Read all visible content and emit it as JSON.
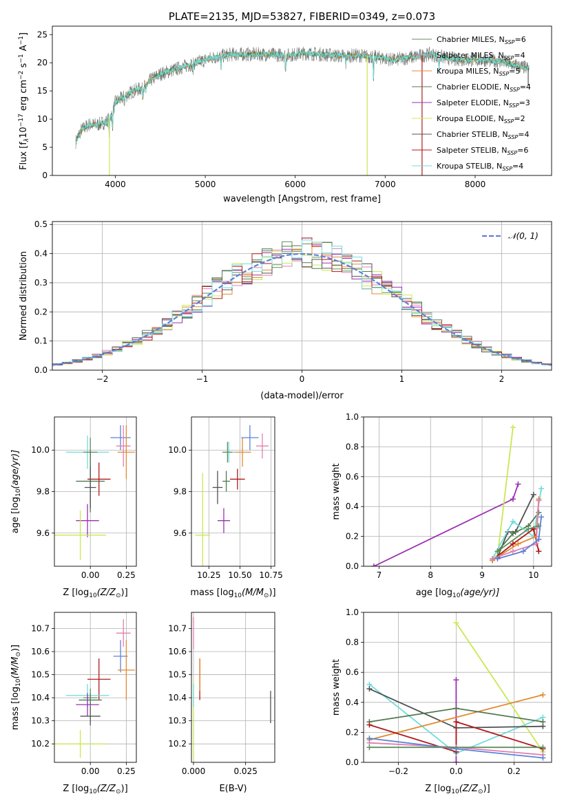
{
  "colors": {
    "Chabrier MILES": "#5f8f5f",
    "Salpeter MILES": "#e07fb0",
    "Kroupa MILES": "#e08a30",
    "Chabrier ELODIE": "#507850",
    "Salpeter ELODIE": "#9a30b0",
    "Kroupa ELODIE": "#c8e850",
    "Chabrier STELIB": "#505050",
    "Salpeter STELIB": "#b01818",
    "Kroupa STELIB": "#70dada",
    "Blue": "#5b82d6",
    "grid": "#b0b0b0"
  },
  "chart_data": [
    {
      "id": "spectrum",
      "type": "line",
      "title": "PLATE=2135, MJD=53827, FIBERID=0349, z=0.073",
      "xlabel": "wavelength [Angstrom, rest frame]",
      "ylabel_main": "Flux [f",
      "ylabel_sub": "λ",
      "ylabel_mid": "10",
      "ylabel_exp": "−17",
      "ylabel_rest": " erg cm",
      "ylabel_exp2": "−2",
      "ylabel_rest2": " s",
      "ylabel_exp3": "−1",
      "ylabel_rest3": " A",
      "ylabel_exp4": "−1",
      "ylabel_end": "]",
      "xlim": [
        3300,
        8850
      ],
      "ylim": [
        0,
        26.5
      ],
      "xticks": [
        4000,
        5000,
        6000,
        7000,
        8000
      ],
      "yticks": [
        0,
        5,
        10,
        15,
        20,
        25
      ],
      "continuum": [
        [
          3560,
          6
        ],
        [
          3620,
          8
        ],
        [
          3700,
          9
        ],
        [
          3800,
          9
        ],
        [
          3900,
          9.5
        ],
        [
          3970,
          11
        ],
        [
          4000,
          13
        ],
        [
          4100,
          14
        ],
        [
          4200,
          15
        ],
        [
          4300,
          15.5
        ],
        [
          4400,
          17
        ],
        [
          4500,
          18
        ],
        [
          4700,
          19
        ],
        [
          4900,
          20
        ],
        [
          5100,
          21
        ],
        [
          5300,
          21.5
        ],
        [
          5500,
          21.5
        ],
        [
          5700,
          21.5
        ],
        [
          5900,
          21.3
        ],
        [
          6100,
          21.7
        ],
        [
          6300,
          21.5
        ],
        [
          6500,
          21.2
        ],
        [
          6700,
          21.3
        ],
        [
          6900,
          21
        ],
        [
          7100,
          20.5
        ],
        [
          7300,
          21
        ],
        [
          7500,
          21.5
        ],
        [
          7700,
          20.8
        ],
        [
          7900,
          20.5
        ],
        [
          8100,
          20.5
        ],
        [
          8300,
          20.2
        ],
        [
          8450,
          19.5
        ],
        [
          8600,
          19
        ]
      ],
      "legend": [
        {
          "imf": "Chabrier MILES",
          "n": "6"
        },
        {
          "imf": "Salpeter MILES",
          "n": "4"
        },
        {
          "imf": "Kroupa MILES",
          "n": "5"
        },
        {
          "imf": "Chabrier ELODIE",
          "n": "4"
        },
        {
          "imf": "Salpeter ELODIE",
          "n": "3"
        },
        {
          "imf": "Kroupa ELODIE",
          "n": "2"
        },
        {
          "imf": "Chabrier STELIB",
          "n": "4"
        },
        {
          "imf": "Salpeter STELIB",
          "n": "6"
        },
        {
          "imf": "Kroupa STELIB",
          "n": "4"
        }
      ],
      "legend_prefix": "N",
      "legend_sub": "SSP",
      "legend_placement": "top-right"
    },
    {
      "id": "residuals",
      "type": "histogram",
      "xlabel": "(data-model)/error",
      "ylabel": "Normed distribution",
      "xlim": [
        -2.5,
        2.5
      ],
      "ylim": [
        0,
        0.51
      ],
      "xticks": [
        -2,
        -1,
        0,
        1,
        2
      ],
      "xtick_labels": [
        "−2",
        "−1",
        "0",
        "1",
        "2"
      ],
      "yticks": [
        0.0,
        0.1,
        0.2,
        0.3,
        0.4,
        0.5
      ],
      "ytick_labels": [
        "0.0",
        "0.1",
        "0.2",
        "0.3",
        "0.4",
        "0.5"
      ],
      "bin_width": 0.1,
      "legend_label": "𝒩(0, 1)",
      "legend_placement": "top-right"
    },
    {
      "id": "age_vs_Z",
      "type": "scatter",
      "xlabel": "Z [log",
      "xlabel_sub": "10",
      "xlabel_rest": "(Z/Z",
      "xlabel_sub2": "⊙",
      "xlabel_end": ")]",
      "ylabel": "age  [log",
      "ylabel_sub": "10",
      "ylabel_rest": "(age/yr)]",
      "xlim": [
        -0.25,
        0.32
      ],
      "ylim": [
        9.44,
        10.16
      ],
      "xticks": [
        0.0,
        0.25
      ],
      "xtick_labels": [
        "0.00",
        "0.25"
      ],
      "yticks": [
        9.6,
        9.8,
        10.0
      ],
      "yticks_labels": [
        "9.6",
        "9.8",
        "10.0"
      ],
      "points": [
        {
          "series": "Blue",
          "x": 0.21,
          "y": 10.06,
          "xerr": 0.07,
          "yerr": 0.06
        },
        {
          "series": "Salpeter MILES",
          "x": 0.23,
          "y": 10.02,
          "xerr": 0.05,
          "yerr": 0.1
        },
        {
          "series": "Kroupa MILES",
          "x": 0.25,
          "y": 9.99,
          "xerr": 0.06,
          "yerr": 0.13
        },
        {
          "series": "Kroupa STELIB",
          "x": -0.02,
          "y": 9.99,
          "xerr": 0.15,
          "yerr": 0.08
        },
        {
          "series": "Chabrier MILES",
          "x": 0.0,
          "y": 9.99,
          "xerr": 0.05,
          "yerr": 0.07
        },
        {
          "series": "Salpeter STELIB",
          "x": 0.06,
          "y": 9.86,
          "xerr": 0.08,
          "yerr": 0.08
        },
        {
          "series": "Chabrier ELODIE",
          "x": 0.0,
          "y": 9.85,
          "xerr": 0.1,
          "yerr": 0.15
        },
        {
          "series": "Chabrier STELIB",
          "x": 0.0,
          "y": 9.82,
          "xerr": 0.04,
          "yerr": 0.1
        },
        {
          "series": "Salpeter ELODIE",
          "x": -0.02,
          "y": 9.66,
          "xerr": 0.08,
          "yerr": 0.08
        },
        {
          "series": "Kroupa ELODIE",
          "x": -0.07,
          "y": 9.59,
          "xerr": 0.18,
          "yerr": 0.12
        }
      ]
    },
    {
      "id": "age_vs_mass",
      "type": "scatter",
      "xlabel": "mass [log",
      "xlabel_sub": "10",
      "xlabel_rest": "(M/M",
      "xlabel_sub2": "⊙",
      "xlabel_end": ")]",
      "xlim": [
        10.11,
        10.78
      ],
      "ylim": [
        9.44,
        10.16
      ],
      "xticks": [
        10.25,
        10.5,
        10.75
      ],
      "xtick_labels": [
        "10.25",
        "10.50",
        "10.75"
      ],
      "yticks": [
        9.6,
        9.8,
        10.0
      ],
      "yticks_labels": [
        "9.6",
        "9.8",
        "10.0"
      ],
      "points": [
        {
          "series": "Blue",
          "x": 10.58,
          "y": 10.06,
          "xerr": 0.07,
          "yerr": 0.06
        },
        {
          "series": "Salpeter MILES",
          "x": 10.68,
          "y": 10.02,
          "xerr": 0.05,
          "yerr": 0.06
        },
        {
          "series": "Kroupa MILES",
          "x": 10.52,
          "y": 9.99,
          "xerr": 0.07,
          "yerr": 0.07
        },
        {
          "series": "Kroupa STELIB",
          "x": 10.41,
          "y": 9.99,
          "xerr": 0.05,
          "yerr": 0.05
        },
        {
          "series": "Chabrier MILES",
          "x": 10.4,
          "y": 9.99,
          "xerr": 0.04,
          "yerr": 0.05
        },
        {
          "series": "Salpeter STELIB",
          "x": 10.48,
          "y": 9.86,
          "xerr": 0.06,
          "yerr": 0.05
        },
        {
          "series": "Chabrier ELODIE",
          "x": 10.39,
          "y": 9.85,
          "xerr": 0.03,
          "yerr": 0.05
        },
        {
          "series": "Chabrier STELIB",
          "x": 10.32,
          "y": 9.82,
          "xerr": 0.04,
          "yerr": 0.08
        },
        {
          "series": "Salpeter ELODIE",
          "x": 10.37,
          "y": 9.66,
          "xerr": 0.05,
          "yerr": 0.06
        },
        {
          "series": "Kroupa ELODIE",
          "x": 10.2,
          "y": 9.59,
          "xerr": 0.06,
          "yerr": 0.3
        }
      ]
    },
    {
      "id": "weight_vs_age",
      "type": "line",
      "xlabel": "age  [log",
      "xlabel_sub": "10",
      "xlabel_rest": "(age/yr)]",
      "ylabel": "mass weight",
      "xlim": [
        6.7,
        10.35
      ],
      "ylim": [
        0,
        1.0
      ],
      "xticks": [
        7,
        8,
        9,
        10
      ],
      "xtick_labels": [
        "7",
        "8",
        "9",
        "10"
      ],
      "yticks": [
        0.0,
        0.2,
        0.4,
        0.6,
        0.8,
        1.0
      ],
      "ytick_labels": [
        "0.0",
        "0.2",
        "0.4",
        "0.6",
        "0.8",
        "1.0"
      ],
      "series": [
        {
          "name": "Salpeter ELODIE",
          "points": [
            [
              6.9,
              0.0
            ],
            [
              9.6,
              0.45
            ],
            [
              9.7,
              0.55
            ]
          ]
        },
        {
          "name": "Kroupa ELODIE",
          "points": [
            [
              9.3,
              0.07
            ],
            [
              9.6,
              0.93
            ]
          ]
        },
        {
          "name": "Chabrier STELIB",
          "points": [
            [
              9.3,
              0.06
            ],
            [
              9.5,
              0.23
            ],
            [
              9.65,
              0.23
            ],
            [
              10.0,
              0.48
            ]
          ]
        },
        {
          "name": "Chabrier ELODIE",
          "points": [
            [
              9.3,
              0.1
            ],
            [
              9.6,
              0.22
            ],
            [
              9.9,
              0.27
            ],
            [
              10.1,
              0.36
            ]
          ]
        },
        {
          "name": "Kroupa STELIB",
          "points": [
            [
              9.2,
              0.05
            ],
            [
              9.6,
              0.3
            ],
            [
              10.0,
              0.2
            ],
            [
              10.15,
              0.52
            ]
          ]
        },
        {
          "name": "Salpeter STELIB",
          "points": [
            [
              9.2,
              0.04
            ],
            [
              9.6,
              0.15
            ],
            [
              10.0,
              0.25
            ],
            [
              10.1,
              0.1
            ]
          ]
        },
        {
          "name": "Kroupa MILES",
          "points": [
            [
              9.2,
              0.04
            ],
            [
              9.7,
              0.15
            ],
            [
              10.05,
              0.2
            ],
            [
              10.1,
              0.45
            ]
          ]
        },
        {
          "name": "Salpeter MILES",
          "points": [
            [
              9.2,
              0.05
            ],
            [
              9.6,
              0.1
            ],
            [
              10.05,
              0.15
            ],
            [
              10.1,
              0.44
            ]
          ]
        },
        {
          "name": "Blue",
          "points": [
            [
              9.3,
              0.05
            ],
            [
              9.8,
              0.1
            ],
            [
              10.1,
              0.18
            ],
            [
              10.15,
              0.33
            ]
          ]
        },
        {
          "name": "Chabrier MILES",
          "points": [
            [
              9.3,
              0.1
            ],
            [
              9.9,
              0.25
            ],
            [
              10.1,
              0.27
            ]
          ]
        }
      ]
    },
    {
      "id": "mass_vs_Z",
      "type": "scatter",
      "xlabel": "Z [log",
      "xlabel_sub": "10",
      "xlabel_rest": "(Z/Z",
      "xlabel_sub2": "⊙",
      "xlabel_end": ")]",
      "ylabel": "mass [log",
      "ylabel_sub": "10",
      "ylabel_rest": "(M/M",
      "ylabel_sub2": "⊙",
      "ylabel_end": ")]",
      "xlim": [
        -0.25,
        0.32
      ],
      "ylim": [
        10.12,
        10.77
      ],
      "xticks": [
        0.0,
        0.25
      ],
      "xtick_labels": [
        "0.00",
        "0.25"
      ],
      "yticks": [
        10.2,
        10.3,
        10.4,
        10.5,
        10.6,
        10.7
      ],
      "ytick_labels": [
        "10.2",
        "10.3",
        "10.4",
        "10.5",
        "10.6",
        "10.7"
      ],
      "points": [
        {
          "series": "Salpeter MILES",
          "x": 0.23,
          "y": 10.68,
          "xerr": 0.05,
          "yerr": 0.06
        },
        {
          "series": "Blue",
          "x": 0.21,
          "y": 10.58,
          "xerr": 0.05,
          "yerr": 0.07
        },
        {
          "series": "Kroupa MILES",
          "x": 0.25,
          "y": 10.52,
          "xerr": 0.06,
          "yerr": 0.13
        },
        {
          "series": "Salpeter STELIB",
          "x": 0.06,
          "y": 10.48,
          "xerr": 0.08,
          "yerr": 0.09
        },
        {
          "series": "Kroupa STELIB",
          "x": -0.02,
          "y": 10.41,
          "xerr": 0.15,
          "yerr": 0.05
        },
        {
          "series": "Chabrier MILES",
          "x": 0.0,
          "y": 10.4,
          "xerr": 0.05,
          "yerr": 0.04
        },
        {
          "series": "Chabrier ELODIE",
          "x": 0.0,
          "y": 10.39,
          "xerr": 0.08,
          "yerr": 0.03
        },
        {
          "series": "Salpeter ELODIE",
          "x": -0.02,
          "y": 10.37,
          "xerr": 0.08,
          "yerr": 0.05
        },
        {
          "series": "Chabrier STELIB",
          "x": 0.0,
          "y": 10.32,
          "xerr": 0.07,
          "yerr": 0.04
        },
        {
          "series": "Kroupa ELODIE",
          "x": -0.07,
          "y": 10.2,
          "xerr": 0.18,
          "yerr": 0.06
        }
      ]
    },
    {
      "id": "mass_vs_ebv",
      "type": "scatter",
      "xlabel": "E(B-V)",
      "xlim": [
        -0.001,
        0.039
      ],
      "ylim": [
        10.12,
        10.77
      ],
      "xticks": [
        0.0,
        0.025
      ],
      "xtick_labels": [
        "0.000",
        "0.025"
      ],
      "yticks": [
        10.2,
        10.3,
        10.4,
        10.5,
        10.6,
        10.7
      ],
      "ytick_labels": [
        "10.2",
        "10.3",
        "10.4",
        "10.5",
        "10.6",
        "10.7"
      ],
      "points": [
        {
          "series": "Salpeter MILES",
          "x": 0.0,
          "y": 10.68,
          "xerr": 0,
          "yerr": 0.07
        },
        {
          "series": "Kroupa ELODIE",
          "x": 0.0,
          "y": 10.3,
          "xerr": 0,
          "yerr": 0.17
        },
        {
          "series": "Kroupa STELIB",
          "x": 0.0,
          "y": 10.41,
          "xerr": 0,
          "yerr": 0.05
        },
        {
          "series": "Salpeter STELIB",
          "x": 0.003,
          "y": 10.48,
          "xerr": 0,
          "yerr": 0.09
        },
        {
          "series": "Kroupa MILES",
          "x": 0.003,
          "y": 10.5,
          "xerr": 0,
          "yerr": 0.07
        },
        {
          "series": "Chabrier STELIB",
          "x": 0.037,
          "y": 10.36,
          "xerr": 0,
          "yerr": 0.07
        }
      ]
    },
    {
      "id": "weight_vs_Z",
      "type": "line",
      "xlabel": "Z [log",
      "xlabel_sub": "10",
      "xlabel_rest": "(Z/Z",
      "xlabel_sub2": "⊙",
      "xlabel_end": ")]",
      "ylabel": "mass weight",
      "xlim": [
        -0.32,
        0.33
      ],
      "ylim": [
        0,
        1.0
      ],
      "xticks": [
        -0.2,
        0.0,
        0.2
      ],
      "xtick_labels": [
        "−0.2",
        "0.0",
        "0.2"
      ],
      "yticks": [
        0.0,
        0.2,
        0.4,
        0.6,
        0.8,
        1.0
      ],
      "ytick_labels": [
        "0.0",
        "0.2",
        "0.4",
        "0.6",
        "0.8",
        "1.0"
      ],
      "series": [
        {
          "name": "Kroupa ELODIE",
          "points": [
            [
              0.0,
              0.93
            ],
            [
              0.3,
              0.07
            ]
          ]
        },
        {
          "name": "Salpeter ELODIE",
          "points": [
            [
              0.0,
              0.0
            ],
            [
              0.0,
              0.55
            ]
          ]
        },
        {
          "name": "Kroupa STELIB",
          "points": [
            [
              -0.3,
              0.52
            ],
            [
              0.0,
              0.06
            ],
            [
              0.3,
              0.3
            ]
          ]
        },
        {
          "name": "Chabrier STELIB",
          "points": [
            [
              -0.3,
              0.49
            ],
            [
              0.0,
              0.23
            ],
            [
              0.3,
              0.24
            ]
          ]
        },
        {
          "name": "Kroupa MILES",
          "points": [
            [
              -0.3,
              0.15
            ],
            [
              0.3,
              0.45
            ]
          ]
        },
        {
          "name": "Chabrier ELODIE",
          "points": [
            [
              -0.3,
              0.27
            ],
            [
              0.0,
              0.36
            ],
            [
              0.3,
              0.27
            ]
          ]
        },
        {
          "name": "Salpeter STELIB",
          "points": [
            [
              -0.3,
              0.25
            ],
            [
              0.0,
              0.07
            ],
            [
              0.0,
              0.27
            ],
            [
              0.3,
              0.09
            ]
          ]
        },
        {
          "name": "Salpeter MILES",
          "points": [
            [
              -0.3,
              0.13
            ],
            [
              0.0,
              0.1
            ],
            [
              0.3,
              0.05
            ]
          ]
        },
        {
          "name": "Blue",
          "points": [
            [
              -0.3,
              0.16
            ],
            [
              0.0,
              0.09
            ],
            [
              0.3,
              0.03
            ]
          ]
        },
        {
          "name": "Chabrier MILES",
          "points": [
            [
              -0.3,
              0.1
            ],
            [
              0.3,
              0.1
            ]
          ]
        }
      ]
    }
  ]
}
